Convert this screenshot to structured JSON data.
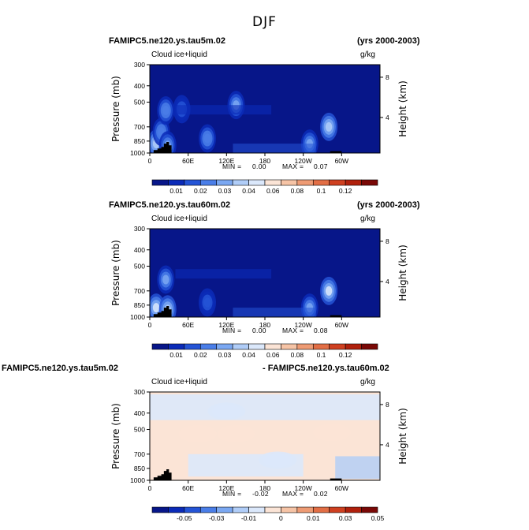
{
  "figure_title": "DJF",
  "chart_data": [
    {
      "type": "heatmap",
      "title_left": "FAMIPC5.ne120.ys.tau5m.02",
      "title_right": "(yrs 2000-2003)",
      "subtitle": "Cloud ice+liquid",
      "units": "g/kg",
      "ylabel": "Pressure (mb)",
      "ylabel_right": "Height (km)",
      "x_ticks": [
        "0",
        "60E",
        "120E",
        "180",
        "120W",
        "60W"
      ],
      "y_ticks": [
        "300",
        "400",
        "500",
        "700",
        "850",
        "1000"
      ],
      "y_right_ticks": [
        "8",
        "4"
      ],
      "min_label": "MIN =",
      "min_value": "0.00",
      "max_label": "MAX =",
      "max_value": "0.07",
      "colorbar_labels": [
        "0.01",
        "0.02",
        "0.03",
        "0.04",
        "0.06",
        "0.08",
        "0.1",
        "0.12"
      ],
      "colors": [
        "#071689",
        "#0b2bb8",
        "#2454d6",
        "#4a7ee8",
        "#7ba8f2",
        "#b0cdf8",
        "#dbe8fb",
        "#fbe4d6",
        "#f6c4a6",
        "#ee9b74",
        "#e26e45",
        "#cf4020",
        "#b0200c",
        "#7a0806"
      ],
      "background": "#071689",
      "cloud_features": [
        {
          "lon": 10,
          "p": 880,
          "value": 0.06
        },
        {
          "lon": 18,
          "p": 750,
          "value": 0.04
        },
        {
          "lon": 25,
          "p": 560,
          "value": 0.04
        },
        {
          "lon": 28,
          "p": 900,
          "value": 0.05
        },
        {
          "lon": 50,
          "p": 550,
          "value": 0.03
        },
        {
          "lon": 90,
          "p": 820,
          "value": 0.04
        },
        {
          "lon": 135,
          "p": 520,
          "value": 0.05
        },
        {
          "lon": 250,
          "p": 880,
          "value": 0.05
        },
        {
          "lon": 280,
          "p": 700,
          "value": 0.06
        }
      ]
    },
    {
      "type": "heatmap",
      "title_left": "FAMIPC5.ne120.ys.tau60m.02",
      "title_right": "(yrs 2000-2003)",
      "subtitle": "Cloud ice+liquid",
      "units": "g/kg",
      "ylabel": "Pressure (mb)",
      "ylabel_right": "Height (km)",
      "x_ticks": [
        "0",
        "60E",
        "120E",
        "180",
        "120W",
        "60W"
      ],
      "y_ticks": [
        "300",
        "400",
        "500",
        "700",
        "850",
        "1000"
      ],
      "y_right_ticks": [
        "8",
        "4"
      ],
      "min_label": "MIN =",
      "min_value": "0.00",
      "max_label": "MAX =",
      "max_value": "0.08",
      "colorbar_labels": [
        "0.01",
        "0.02",
        "0.03",
        "0.04",
        "0.06",
        "0.08",
        "0.1",
        "0.12"
      ],
      "colors": [
        "#071689",
        "#0b2bb8",
        "#2454d6",
        "#4a7ee8",
        "#7ba8f2",
        "#b0cdf8",
        "#dbe8fb",
        "#fbe4d6",
        "#f6c4a6",
        "#ee9b74",
        "#e26e45",
        "#cf4020",
        "#b0200c",
        "#7a0806"
      ],
      "background": "#071689",
      "cloud_features": [
        {
          "lon": 10,
          "p": 880,
          "value": 0.07
        },
        {
          "lon": 25,
          "p": 600,
          "value": 0.05
        },
        {
          "lon": 28,
          "p": 900,
          "value": 0.06
        },
        {
          "lon": 90,
          "p": 820,
          "value": 0.03
        },
        {
          "lon": 250,
          "p": 880,
          "value": 0.05
        },
        {
          "lon": 280,
          "p": 700,
          "value": 0.07
        }
      ]
    },
    {
      "type": "heatmap",
      "title_left": "FAMIPC5.ne120.ys.tau5m.02",
      "title_right": "- FAMIPC5.ne120.ys.tau60m.02",
      "subtitle": "Cloud ice+liquid",
      "units": "g/kg",
      "ylabel": "Pressure (mb)",
      "ylabel_right": "Height (km)",
      "x_ticks": [
        "0",
        "60E",
        "120E",
        "180",
        "120W",
        "60W"
      ],
      "y_ticks": [
        "300",
        "400",
        "500",
        "700",
        "850",
        "1000"
      ],
      "y_right_ticks": [
        "8",
        "4"
      ],
      "min_label": "MIN =",
      "min_value": "-0.02",
      "max_label": "MAX =",
      "max_value": "0.02",
      "colorbar_labels": [
        "-0.05",
        "-0.03",
        "-0.01",
        "0",
        "0.01",
        "0.03",
        "0.05"
      ],
      "colors": [
        "#071689",
        "#0b2bb8",
        "#2454d6",
        "#4a7ee8",
        "#7ba8f2",
        "#b0cdf8",
        "#dbe8fb",
        "#fbe4d6",
        "#f6c4a6",
        "#ee9b74",
        "#e26e45",
        "#cf4020",
        "#b0200c",
        "#7a0806"
      ],
      "background": "#fbe4d6",
      "cloud_features": [
        {
          "lon": 135,
          "p": 530,
          "value": 0.01
        },
        {
          "lon": 75,
          "p": 530,
          "value": 0.01
        },
        {
          "lon": 285,
          "p": 520,
          "value": 0.01
        },
        {
          "lon": 200,
          "p": 760,
          "value": -0.01
        },
        {
          "lon": 120,
          "p": 390,
          "value": -0.01
        }
      ]
    }
  ]
}
